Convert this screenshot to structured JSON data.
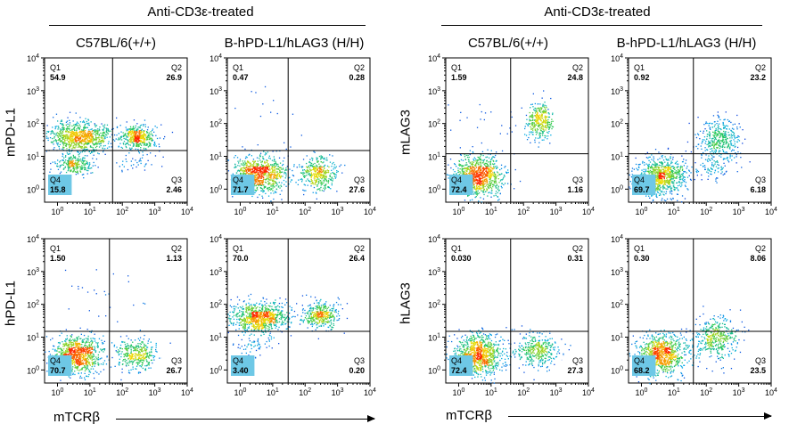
{
  "groups": [
    {
      "title": "Anti-CD3ε-treated"
    },
    {
      "title": "Anti-CD3ε-treated"
    }
  ],
  "columns": [
    "C57BL/6(+/+)",
    "B-hPD-L1/hLAG3 (H/H)",
    "C57BL/6(+/+)",
    "B-hPD-L1/hLAG3 (H/H)"
  ],
  "row_labels": {
    "left_top": "mPD-L1",
    "left_bottom": "hPD-L1",
    "right_top": "mLAG3",
    "right_bottom": "hLAG3"
  },
  "x_label": "mTCRβ",
  "chart_data": [
    {
      "type": "scatter",
      "panel": "left-top-1",
      "title": "",
      "xlabel": "mTCRβ",
      "ylabel": "mPD-L1",
      "xlim": [
        0.4,
        10000
      ],
      "ylim": [
        0.4,
        10000
      ],
      "log_scale": true,
      "x_ticks": [
        "10^0",
        "10^1",
        "10^2",
        "10^3",
        "10^4"
      ],
      "y_ticks": [
        "10^0",
        "10^1",
        "10^2",
        "10^3",
        "10^4"
      ],
      "quadrants": {
        "Q1": "54.9",
        "Q2": "26.9",
        "Q3": "2.46",
        "Q4": "15.8"
      },
      "gate": {
        "x": 50,
        "y": 15
      },
      "clusters": [
        {
          "x": 5,
          "y": 40,
          "n": 850,
          "spread_x": 0.5,
          "spread_y": 0.22
        },
        {
          "x": 300,
          "y": 40,
          "n": 420,
          "spread_x": 0.28,
          "spread_y": 0.18
        },
        {
          "x": 3,
          "y": 6,
          "n": 250,
          "spread_x": 0.3,
          "spread_y": 0.15
        },
        {
          "x": 300,
          "y": 6,
          "n": 40,
          "spread_x": 0.3,
          "spread_y": 0.15
        }
      ]
    },
    {
      "type": "scatter",
      "panel": "left-top-2",
      "title": "",
      "xlabel": "mTCRβ",
      "ylabel": "mPD-L1",
      "xlim": [
        0.4,
        10000
      ],
      "ylim": [
        0.4,
        10000
      ],
      "log_scale": true,
      "x_ticks": [
        "10^0",
        "10^1",
        "10^2",
        "10^3",
        "10^4"
      ],
      "y_ticks": [
        "10^0",
        "10^1",
        "10^2",
        "10^3",
        "10^4"
      ],
      "quadrants": {
        "Q1": "0.47",
        "Q2": "0.28",
        "Q3": "27.6",
        "Q4": "71.7"
      },
      "gate": {
        "x": 30,
        "y": 15
      },
      "clusters": [
        {
          "x": 4,
          "y": 3,
          "n": 850,
          "spread_x": 0.4,
          "spread_y": 0.28
        },
        {
          "x": 250,
          "y": 3,
          "n": 380,
          "spread_x": 0.3,
          "spread_y": 0.25
        },
        {
          "x": 10,
          "y": 200,
          "n": 15,
          "spread_x": 0.6,
          "spread_y": 0.5
        }
      ]
    },
    {
      "type": "scatter",
      "panel": "right-top-1",
      "title": "",
      "xlabel": "mTCRβ",
      "ylabel": "mLAG3",
      "xlim": [
        0.4,
        10000
      ],
      "ylim": [
        0.4,
        10000
      ],
      "log_scale": true,
      "x_ticks": [
        "10^0",
        "10^1",
        "10^2",
        "10^3",
        "10^4"
      ],
      "y_ticks": [
        "10^0",
        "10^1",
        "10^2",
        "10^3",
        "10^4"
      ],
      "quadrants": {
        "Q1": "1.59",
        "Q2": "24.8",
        "Q3": "1.16",
        "Q4": "72.4"
      },
      "gate": {
        "x": 40,
        "y": 12
      },
      "clusters": [
        {
          "x": 4,
          "y": 2.5,
          "n": 900,
          "spread_x": 0.38,
          "spread_y": 0.3
        },
        {
          "x": 300,
          "y": 120,
          "n": 320,
          "spread_x": 0.2,
          "spread_y": 0.3
        },
        {
          "x": 10,
          "y": 80,
          "n": 25,
          "spread_x": 0.6,
          "spread_y": 0.5
        }
      ]
    },
    {
      "type": "scatter",
      "panel": "right-top-2",
      "title": "",
      "xlabel": "mTCRβ",
      "ylabel": "mLAG3",
      "xlim": [
        0.4,
        10000
      ],
      "ylim": [
        0.4,
        10000
      ],
      "log_scale": true,
      "x_ticks": [
        "10^0",
        "10^1",
        "10^2",
        "10^3",
        "10^4"
      ],
      "y_ticks": [
        "10^0",
        "10^1",
        "10^2",
        "10^3",
        "10^4"
      ],
      "quadrants": {
        "Q1": "0.92",
        "Q2": "23.2",
        "Q3": "6.18",
        "Q4": "69.7"
      },
      "gate": {
        "x": 40,
        "y": 12
      },
      "clusters": [
        {
          "x": 4,
          "y": 2.5,
          "n": 850,
          "spread_x": 0.38,
          "spread_y": 0.3
        },
        {
          "x": 250,
          "y": 35,
          "n": 380,
          "spread_x": 0.32,
          "spread_y": 0.32
        },
        {
          "x": 150,
          "y": 5,
          "n": 90,
          "spread_x": 0.35,
          "spread_y": 0.2
        }
      ]
    },
    {
      "type": "scatter",
      "panel": "left-bottom-1",
      "title": "",
      "xlabel": "mTCRβ",
      "ylabel": "hPD-L1",
      "xlim": [
        0.4,
        10000
      ],
      "ylim": [
        0.4,
        10000
      ],
      "log_scale": true,
      "x_ticks": [
        "10^0",
        "10^1",
        "10^2",
        "10^3",
        "10^4"
      ],
      "y_ticks": [
        "10^0",
        "10^1",
        "10^2",
        "10^3",
        "10^4"
      ],
      "quadrants": {
        "Q1": "1.50",
        "Q2": "1.13",
        "Q3": "26.7",
        "Q4": "70.7"
      },
      "gate": {
        "x": 40,
        "y": 15
      },
      "clusters": [
        {
          "x": 4,
          "y": 3,
          "n": 850,
          "spread_x": 0.38,
          "spread_y": 0.28
        },
        {
          "x": 250,
          "y": 3,
          "n": 350,
          "spread_x": 0.3,
          "spread_y": 0.25
        },
        {
          "x": 30,
          "y": 200,
          "n": 25,
          "spread_x": 0.7,
          "spread_y": 0.5
        }
      ]
    },
    {
      "type": "scatter",
      "panel": "left-bottom-2",
      "title": "",
      "xlabel": "mTCRβ",
      "ylabel": "hPD-L1",
      "xlim": [
        0.4,
        10000
      ],
      "ylim": [
        0.4,
        10000
      ],
      "log_scale": true,
      "x_ticks": [
        "10^0",
        "10^1",
        "10^2",
        "10^3",
        "10^4"
      ],
      "y_ticks": [
        "10^0",
        "10^1",
        "10^2",
        "10^3",
        "10^4"
      ],
      "quadrants": {
        "Q1": "70.0",
        "Q2": "26.4",
        "Q3": "0.20",
        "Q4": "3.40"
      },
      "gate": {
        "x": 30,
        "y": 15
      },
      "clusters": [
        {
          "x": 4,
          "y": 40,
          "n": 850,
          "spread_x": 0.45,
          "spread_y": 0.22
        },
        {
          "x": 300,
          "y": 50,
          "n": 380,
          "spread_x": 0.28,
          "spread_y": 0.2
        },
        {
          "x": 3,
          "y": 6,
          "n": 60,
          "spread_x": 0.3,
          "spread_y": 0.15
        }
      ]
    },
    {
      "type": "scatter",
      "panel": "right-bottom-1",
      "title": "",
      "xlabel": "mTCRβ",
      "ylabel": "hLAG3",
      "xlim": [
        0.4,
        10000
      ],
      "ylim": [
        0.4,
        10000
      ],
      "log_scale": true,
      "x_ticks": [
        "10^0",
        "10^1",
        "10^2",
        "10^3",
        "10^4"
      ],
      "y_ticks": [
        "10^0",
        "10^1",
        "10^2",
        "10^3",
        "10^4"
      ],
      "quadrants": {
        "Q1": "0.030",
        "Q2": "0.31",
        "Q3": "27.3",
        "Q4": "72.4"
      },
      "gate": {
        "x": 40,
        "y": 15
      },
      "clusters": [
        {
          "x": 4,
          "y": 3,
          "n": 900,
          "spread_x": 0.38,
          "spread_y": 0.3
        },
        {
          "x": 250,
          "y": 4,
          "n": 360,
          "spread_x": 0.3,
          "spread_y": 0.25
        }
      ]
    },
    {
      "type": "scatter",
      "panel": "right-bottom-2",
      "title": "",
      "xlabel": "mTCRβ",
      "ylabel": "hLAG3",
      "xlim": [
        0.4,
        10000
      ],
      "ylim": [
        0.4,
        10000
      ],
      "log_scale": true,
      "x_ticks": [
        "10^0",
        "10^1",
        "10^2",
        "10^3",
        "10^4"
      ],
      "y_ticks": [
        "10^0",
        "10^1",
        "10^2",
        "10^3",
        "10^4"
      ],
      "quadrants": {
        "Q1": "0.30",
        "Q2": "8.06",
        "Q3": "23.5",
        "Q4": "68.2"
      },
      "gate": {
        "x": 40,
        "y": 15
      },
      "clusters": [
        {
          "x": 4,
          "y": 3,
          "n": 850,
          "spread_x": 0.38,
          "spread_y": 0.3
        },
        {
          "x": 200,
          "y": 10,
          "n": 400,
          "spread_x": 0.35,
          "spread_y": 0.32
        }
      ]
    }
  ],
  "colors": {
    "density_low": "#1a1aff",
    "density_mid": "#00c8c8",
    "density_high": "#ff3000",
    "gate_line": "#000000",
    "quad_box": "#ffffff",
    "q4_box": "#6ec8e6"
  }
}
